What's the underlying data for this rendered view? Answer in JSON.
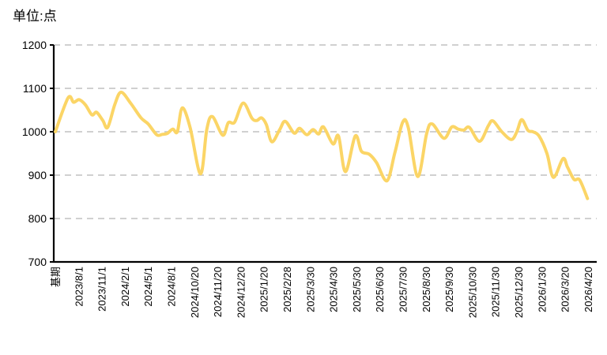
{
  "unit_label": "单位:点",
  "colors": {
    "line": "#FBD566",
    "gridline": "#C9C9C9",
    "axis": "#000000",
    "text": "#000000",
    "background": "#FFFFFF"
  },
  "chart_data": {
    "type": "line",
    "title": "单位:点",
    "xlabel": "",
    "ylabel": "",
    "ylim": [
      700,
      1200
    ],
    "yticks": [
      700,
      800,
      900,
      1000,
      1100,
      1200
    ],
    "grid": "horizontal-dashed",
    "legend": "none",
    "x_tick_labels": [
      "基期",
      "2023/8/1",
      "2023/11/1",
      "2024/2/1",
      "2024/5/1",
      "2024/8/1",
      "2024/10/20",
      "2024/11/20",
      "2024/12/20",
      "2025/1/20",
      "2025/2/28",
      "2025/3/30",
      "2025/4/30",
      "2025/5/30",
      "2025/6/30",
      "2025/7/30",
      "2025/8/30",
      "2025/9/30",
      "2025/10/30",
      "2025/11/30",
      "2025/12/30",
      "2026/1/30",
      "2026/3/20",
      "2026/4/20"
    ],
    "x_axis_note": "curve sampled at fractional positions along the 24 category ticks",
    "series": [
      {
        "color": "#FBD566",
        "points": [
          [
            0.0,
            1000
          ],
          [
            0.55,
            1078
          ],
          [
            0.79,
            1068
          ],
          [
            1.03,
            1074
          ],
          [
            1.3,
            1062
          ],
          [
            1.58,
            1039
          ],
          [
            1.78,
            1045
          ],
          [
            2.05,
            1026
          ],
          [
            2.26,
            1010
          ],
          [
            2.57,
            1063
          ],
          [
            2.84,
            1091
          ],
          [
            3.25,
            1066
          ],
          [
            3.7,
            1032
          ],
          [
            4.01,
            1018
          ],
          [
            4.38,
            993
          ],
          [
            4.62,
            994
          ],
          [
            4.83,
            996
          ],
          [
            5.07,
            1006
          ],
          [
            5.27,
            1000
          ],
          [
            5.48,
            1055
          ],
          [
            5.82,
            1010
          ],
          [
            6.27,
            903
          ],
          [
            6.54,
            1005
          ],
          [
            6.78,
            1035
          ],
          [
            7.23,
            992
          ],
          [
            7.47,
            1021
          ],
          [
            7.74,
            1022
          ],
          [
            8.11,
            1066
          ],
          [
            8.49,
            1031
          ],
          [
            8.7,
            1026
          ],
          [
            8.9,
            1032
          ],
          [
            9.11,
            1017
          ],
          [
            9.35,
            977
          ],
          [
            9.69,
            1005
          ],
          [
            9.93,
            1024
          ],
          [
            10.31,
            997
          ],
          [
            10.55,
            1008
          ],
          [
            10.86,
            993
          ],
          [
            11.13,
            1005
          ],
          [
            11.37,
            995
          ],
          [
            11.58,
            1011
          ],
          [
            11.99,
            972
          ],
          [
            12.23,
            990
          ],
          [
            12.53,
            908
          ],
          [
            12.95,
            990
          ],
          [
            13.22,
            955
          ],
          [
            13.56,
            948
          ],
          [
            13.87,
            929
          ],
          [
            14.32,
            887
          ],
          [
            14.66,
            951
          ],
          [
            15.0,
            1022
          ],
          [
            15.24,
            1010
          ],
          [
            15.65,
            897
          ],
          [
            16.03,
            995
          ],
          [
            16.27,
            1018
          ],
          [
            16.78,
            985
          ],
          [
            17.12,
            1011
          ],
          [
            17.4,
            1006
          ],
          [
            17.64,
            1004
          ],
          [
            17.88,
            1010
          ],
          [
            18.32,
            978
          ],
          [
            18.7,
            1014
          ],
          [
            18.9,
            1025
          ],
          [
            19.28,
            1000
          ],
          [
            19.69,
            982
          ],
          [
            19.93,
            1000
          ],
          [
            20.14,
            1028
          ],
          [
            20.41,
            1003
          ],
          [
            20.62,
            1000
          ],
          [
            20.89,
            990
          ],
          [
            21.23,
            950
          ],
          [
            21.51,
            895
          ],
          [
            21.92,
            938
          ],
          [
            22.12,
            918
          ],
          [
            22.4,
            890
          ],
          [
            22.64,
            889
          ],
          [
            22.98,
            846
          ]
        ]
      }
    ]
  }
}
